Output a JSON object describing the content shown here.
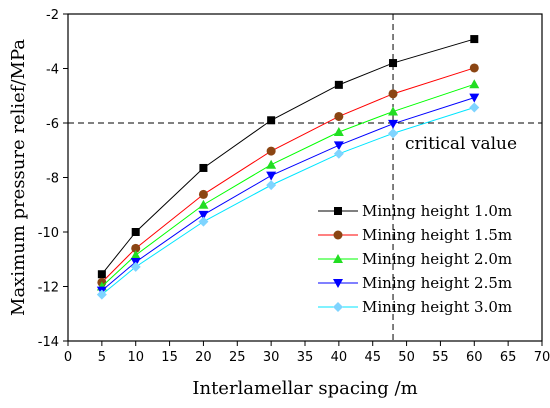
{
  "chart_data": {
    "type": "line",
    "xlabel": "Interlamellar spacing /m",
    "ylabel": "Maximum pressure relief/MPa",
    "xlim": [
      0,
      70
    ],
    "ylim": [
      -14,
      -2
    ],
    "xticks": [
      0,
      5,
      10,
      15,
      20,
      25,
      30,
      35,
      40,
      45,
      50,
      55,
      60,
      65,
      70
    ],
    "yticks": [
      -14,
      -12,
      -10,
      -8,
      -6,
      -4,
      -2
    ],
    "grid": false,
    "legend_position": "lower-right",
    "x": [
      5,
      10,
      20,
      30,
      40,
      48,
      60
    ],
    "series": [
      {
        "name": "Mining height 1.0m",
        "values": [
          -11.55,
          -10.0,
          -7.65,
          -5.9,
          -4.6,
          -3.8,
          -2.92
        ],
        "color": "#000000",
        "fill": "#000000",
        "marker": "square"
      },
      {
        "name": "Mining height 1.5m",
        "values": [
          -11.85,
          -10.6,
          -8.62,
          -7.03,
          -5.76,
          -4.93,
          -3.98
        ],
        "color": "#ff0000",
        "fill": "#8b4513",
        "marker": "circle"
      },
      {
        "name": "Mining height 2.0m",
        "values": [
          -12.0,
          -10.85,
          -9.0,
          -7.53,
          -6.33,
          -5.58,
          -4.58
        ],
        "color": "#00ff00",
        "fill": "#22dd22",
        "marker": "triangle-up"
      },
      {
        "name": "Mining height 2.5m",
        "values": [
          -12.15,
          -11.1,
          -9.37,
          -7.93,
          -6.82,
          -6.03,
          -5.07
        ],
        "color": "#0000ff",
        "fill": "#0000ff",
        "marker": "triangle-down"
      },
      {
        "name": "Mining height 3.0m",
        "values": [
          -12.3,
          -11.28,
          -9.62,
          -8.28,
          -7.13,
          -6.38,
          -5.43
        ],
        "color": "#00e5ff",
        "fill": "#7fd4ff",
        "marker": "diamond"
      }
    ],
    "reference_lines": {
      "x": 48,
      "y": -6
    },
    "annotation": "critical value"
  }
}
